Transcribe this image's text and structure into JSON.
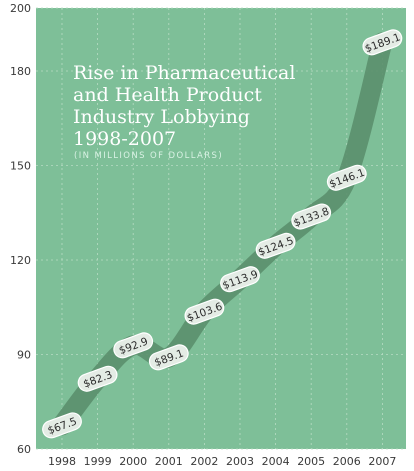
{
  "colors": {
    "background": "#7ebf98",
    "gridline": "#b8dcc4",
    "band": "#5b8f6d",
    "label_fill": "#e4ece5",
    "label_stroke": "#ffffff",
    "text_dark": "#2b2b2b",
    "title": "#ffffff",
    "subtitle": "#d9f2e4"
  },
  "chart_data": {
    "type": "line",
    "title_lines": [
      "Rise in Pharmaceutical",
      "and Health Product",
      "Industry Lobbying",
      "1998-2007"
    ],
    "subtitle": "(IN MILLIONS OF DOLLARS)",
    "categories": [
      "1998",
      "1999",
      "2000",
      "2001",
      "2002",
      "2003",
      "2004",
      "2005",
      "2006",
      "2007"
    ],
    "values": [
      67.5,
      82.3,
      92.9,
      89.1,
      103.6,
      113.9,
      124.5,
      133.8,
      146.1,
      189.1
    ],
    "data_labels": [
      "$67.5",
      "$82.3",
      "$92.9",
      "$89.1",
      "$103.6",
      "$113.9",
      "$124.5",
      "$133.8",
      "$146.1",
      "$189.1"
    ],
    "ylim": [
      60,
      200
    ],
    "yticks": [
      60,
      90,
      120,
      150,
      180,
      200
    ],
    "grid": true,
    "xlabel": "",
    "ylabel": ""
  }
}
